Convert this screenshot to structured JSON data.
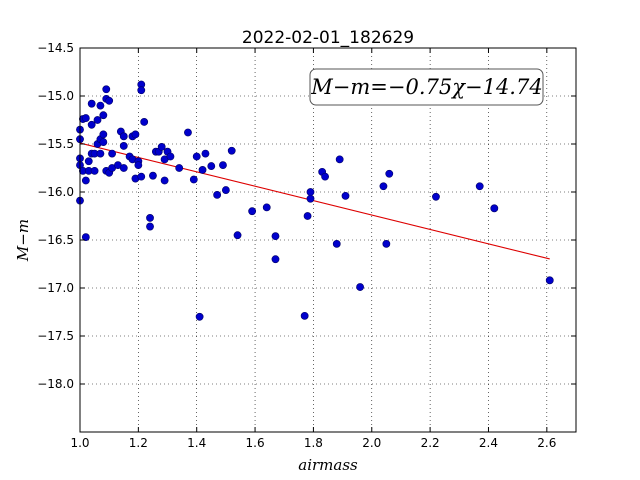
{
  "chart_data": {
    "type": "scatter",
    "title": "2022-02-01_182629",
    "xlabel": "airmass",
    "ylabel": "M−m",
    "xlim": [
      1.0,
      2.7
    ],
    "ylim": [
      -14.5,
      -18.5
    ],
    "y_inverted": true,
    "grid": true,
    "x_ticks": [
      "1.0",
      "1.2",
      "1.4",
      "1.6",
      "1.8",
      "2.0",
      "2.2",
      "2.4",
      "2.6"
    ],
    "y_ticks": [
      "−14.5",
      "−15.0",
      "−15.5",
      "−16.0",
      "−16.5",
      "−17.0",
      "−17.5",
      "−18.0"
    ],
    "annotation": "M−m=−0.75χ−14.74",
    "point_color": "#0000cc",
    "fit_color": "#dd0000",
    "fit_line": {
      "slope": -0.75,
      "intercept": -14.74,
      "x_range": [
        1.0,
        2.61
      ]
    },
    "points": [
      [
        1.0,
        -15.65
      ],
      [
        1.0,
        -15.72
      ],
      [
        1.0,
        -16.09
      ],
      [
        1.0,
        -15.35
      ],
      [
        1.0,
        -15.45
      ],
      [
        1.01,
        -15.24
      ],
      [
        1.01,
        -15.78
      ],
      [
        1.02,
        -15.23
      ],
      [
        1.02,
        -15.88
      ],
      [
        1.02,
        -16.47
      ],
      [
        1.03,
        -15.78
      ],
      [
        1.03,
        -15.68
      ],
      [
        1.04,
        -15.08
      ],
      [
        1.04,
        -15.3
      ],
      [
        1.04,
        -15.6
      ],
      [
        1.05,
        -15.6
      ],
      [
        1.05,
        -15.78
      ],
      [
        1.06,
        -15.25
      ],
      [
        1.06,
        -15.5
      ],
      [
        1.07,
        -15.1
      ],
      [
        1.07,
        -15.45
      ],
      [
        1.07,
        -15.6
      ],
      [
        1.08,
        -15.2
      ],
      [
        1.08,
        -15.4
      ],
      [
        1.08,
        -15.48
      ],
      [
        1.09,
        -14.93
      ],
      [
        1.09,
        -15.03
      ],
      [
        1.09,
        -15.78
      ],
      [
        1.1,
        -15.05
      ],
      [
        1.1,
        -15.8
      ],
      [
        1.11,
        -15.6
      ],
      [
        1.11,
        -15.75
      ],
      [
        1.13,
        -15.72
      ],
      [
        1.14,
        -15.37
      ],
      [
        1.15,
        -15.42
      ],
      [
        1.15,
        -15.52
      ],
      [
        1.15,
        -15.75
      ],
      [
        1.17,
        -15.63
      ],
      [
        1.18,
        -15.42
      ],
      [
        1.18,
        -15.66
      ],
      [
        1.19,
        -15.4
      ],
      [
        1.19,
        -15.86
      ],
      [
        1.2,
        -15.68
      ],
      [
        1.2,
        -15.72
      ],
      [
        1.21,
        -14.88
      ],
      [
        1.21,
        -14.94
      ],
      [
        1.21,
        -15.84
      ],
      [
        1.22,
        -15.27
      ],
      [
        1.24,
        -16.27
      ],
      [
        1.24,
        -16.36
      ],
      [
        1.25,
        -15.83
      ],
      [
        1.26,
        -15.58
      ],
      [
        1.27,
        -15.58
      ],
      [
        1.28,
        -15.53
      ],
      [
        1.29,
        -15.66
      ],
      [
        1.29,
        -15.88
      ],
      [
        1.3,
        -15.58
      ],
      [
        1.31,
        -15.63
      ],
      [
        1.34,
        -15.75
      ],
      [
        1.37,
        -15.38
      ],
      [
        1.39,
        -15.87
      ],
      [
        1.4,
        -15.63
      ],
      [
        1.41,
        -17.3
      ],
      [
        1.42,
        -15.77
      ],
      [
        1.43,
        -15.6
      ],
      [
        1.45,
        -15.73
      ],
      [
        1.47,
        -16.03
      ],
      [
        1.49,
        -15.72
      ],
      [
        1.5,
        -15.98
      ],
      [
        1.52,
        -15.57
      ],
      [
        1.54,
        -16.45
      ],
      [
        1.59,
        -16.2
      ],
      [
        1.64,
        -16.16
      ],
      [
        1.67,
        -16.46
      ],
      [
        1.67,
        -16.7
      ],
      [
        1.77,
        -17.29
      ],
      [
        1.78,
        -16.25
      ],
      [
        1.79,
        -16.0
      ],
      [
        1.79,
        -16.07
      ],
      [
        1.83,
        -15.79
      ],
      [
        1.84,
        -15.84
      ],
      [
        1.88,
        -16.54
      ],
      [
        1.89,
        -15.66
      ],
      [
        1.91,
        -16.04
      ],
      [
        1.96,
        -16.99
      ],
      [
        2.04,
        -15.94
      ],
      [
        2.05,
        -16.54
      ],
      [
        2.06,
        -15.81
      ],
      [
        2.22,
        -16.05
      ],
      [
        2.37,
        -15.94
      ],
      [
        2.42,
        -16.17
      ],
      [
        2.61,
        -16.92
      ]
    ]
  }
}
